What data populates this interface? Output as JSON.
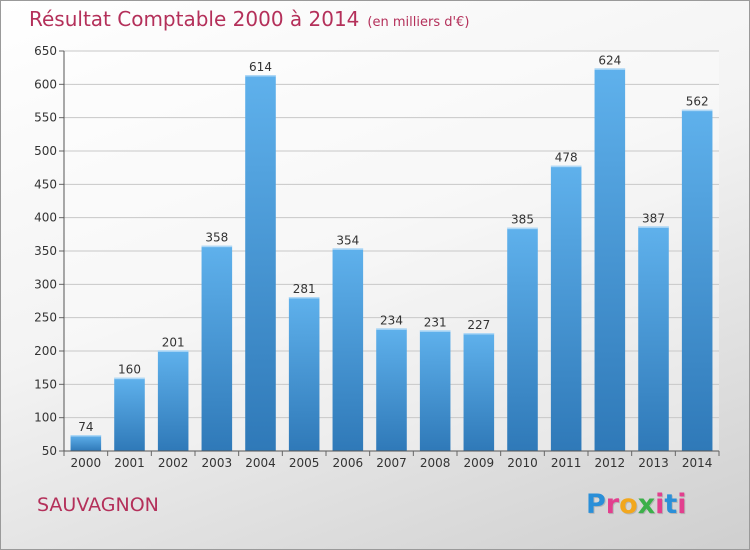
{
  "title": "Résultat Comptable 2000 à 2014",
  "unit": "(en milliers d'€)",
  "commune": "SAUVAGNON",
  "logo": {
    "letters": [
      "P",
      "r",
      "o",
      "x",
      "i",
      "t",
      "i"
    ],
    "colors": [
      "#2a8fd8",
      "#e23f8e",
      "#f2a71d",
      "#3cb04a",
      "#e23f8e",
      "#2a8fd8",
      "#e23f8e"
    ]
  },
  "colors": {
    "bar_top": "#5fb1ec",
    "bar_bottom": "#2f79b8",
    "title": "#b4305a",
    "grid": "#c8c8c8"
  },
  "chart_data": {
    "type": "bar",
    "title": "Résultat Comptable 2000 à 2014",
    "categories": [
      "2000",
      "2001",
      "2002",
      "2003",
      "2004",
      "2005",
      "2006",
      "2007",
      "2008",
      "2009",
      "2010",
      "2011",
      "2012",
      "2013",
      "2014"
    ],
    "values": [
      74,
      160,
      201,
      358,
      614,
      281,
      354,
      234,
      231,
      227,
      385,
      478,
      624,
      387,
      562
    ],
    "ylim": [
      50,
      650
    ],
    "yticks": [
      50,
      100,
      150,
      200,
      250,
      300,
      350,
      400,
      450,
      500,
      550,
      600,
      650
    ],
    "grid": true,
    "xlabel": "",
    "ylabel": ""
  }
}
